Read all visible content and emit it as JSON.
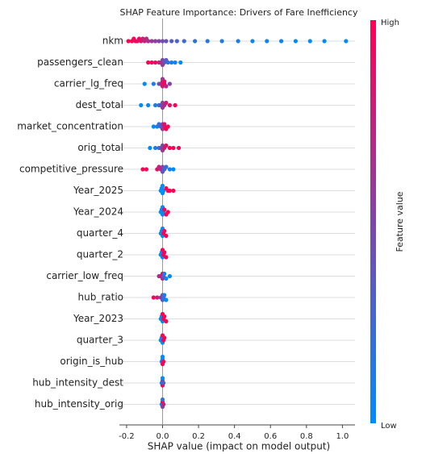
{
  "chart_data": {
    "type": "beeswarm",
    "title": "SHAP Feature Importance: Drivers of Fare Inefficiency",
    "xlabel": "SHAP value (impact on model output)",
    "xlim": [
      -0.24,
      1.07
    ],
    "xticks": [
      -0.2,
      {
        "value": 0,
        "label": "0.0"
      },
      0.2,
      0.4,
      0.6,
      0.8,
      {
        "value": 1,
        "label": "1.0"
      }
    ],
    "colors": {
      "low": "#008bfb",
      "high": "#ff0052"
    },
    "colorbar_label": "Feature value",
    "colorbar_high": "High",
    "colorbar_low": "Low",
    "series": [
      {
        "name": "nkm",
        "values": [
          -0.19,
          -0.17,
          -0.16,
          -0.15,
          -0.14,
          -0.13,
          -0.12,
          -0.11,
          -0.1,
          -0.09,
          -0.08,
          -0.06,
          -0.04,
          -0.02,
          0.0,
          0.02,
          0.05,
          0.08,
          0.12,
          0.18,
          0.25,
          0.33,
          0.42,
          0.5,
          0.58,
          0.66,
          0.74,
          0.82,
          0.9,
          1.02
        ],
        "feature_values": [
          1,
          1,
          1,
          0.95,
          0.9,
          0.9,
          0.85,
          0.8,
          0.75,
          0.7,
          0.65,
          0.6,
          0.55,
          0.5,
          0.45,
          0.4,
          0.35,
          0.3,
          0.25,
          0.2,
          0.15,
          0.1,
          0.1,
          0.05,
          0.05,
          0.05,
          0,
          0,
          0,
          0
        ]
      },
      {
        "name": "passengers_clean",
        "values": [
          -0.08,
          -0.06,
          -0.04,
          -0.02,
          -0.01,
          0.0,
          0.0,
          0.01,
          0.02,
          0.03,
          0.05,
          0.07,
          0.1
        ],
        "feature_values": [
          1,
          0.95,
          0.9,
          0.8,
          0.7,
          0.5,
          0.6,
          0.4,
          0.3,
          0.2,
          0.1,
          0.05,
          0
        ]
      },
      {
        "name": "carrier_lg_freq",
        "values": [
          -0.1,
          -0.05,
          -0.02,
          -0.01,
          0.0,
          0.0,
          0.0,
          0.01,
          0.01,
          0.02,
          0.04
        ],
        "feature_values": [
          0,
          0.1,
          0.3,
          0.7,
          0.9,
          0.8,
          0.6,
          1,
          0.9,
          0.7,
          0.5
        ]
      },
      {
        "name": "dest_total",
        "values": [
          -0.12,
          -0.08,
          -0.04,
          -0.02,
          -0.01,
          0.0,
          0.0,
          0.01,
          0.02,
          0.04,
          0.07
        ],
        "feature_values": [
          0,
          0.05,
          0.1,
          0.2,
          0.4,
          0.5,
          0.6,
          0.7,
          0.8,
          0.9,
          1
        ]
      },
      {
        "name": "market_concentration",
        "values": [
          -0.05,
          -0.03,
          -0.02,
          -0.01,
          0.0,
          0.0,
          0.01,
          0.01,
          0.02,
          0.03
        ],
        "feature_values": [
          0,
          0.1,
          0.2,
          0.3,
          0.5,
          0.6,
          0.8,
          0.9,
          1,
          1
        ]
      },
      {
        "name": "orig_total",
        "values": [
          -0.07,
          -0.04,
          -0.02,
          -0.01,
          0.0,
          0.0,
          0.01,
          0.02,
          0.04,
          0.06,
          0.09
        ],
        "feature_values": [
          0,
          0.1,
          0.2,
          0.4,
          0.5,
          0.6,
          0.8,
          0.9,
          1,
          1,
          1
        ]
      },
      {
        "name": "competitive_pressure",
        "values": [
          -0.11,
          -0.09,
          -0.03,
          -0.02,
          -0.01,
          0.0,
          0.0,
          0.01,
          0.02,
          0.04,
          0.06
        ],
        "feature_values": [
          1,
          0.95,
          0.9,
          0.8,
          0.7,
          0.5,
          0.4,
          0.3,
          0.2,
          0.05,
          0
        ]
      },
      {
        "name": "Year_2025",
        "values": [
          -0.01,
          -0.005,
          0.0,
          0.0,
          0.005,
          0.02,
          0.03,
          0.04,
          0.06
        ],
        "feature_values": [
          0,
          0,
          0,
          0,
          0,
          1,
          1,
          1,
          1
        ]
      },
      {
        "name": "Year_2024",
        "values": [
          -0.01,
          -0.005,
          0.0,
          0.0,
          0.005,
          0.01,
          0.02,
          0.03
        ],
        "feature_values": [
          0,
          0,
          0,
          0,
          0,
          1,
          1,
          1
        ]
      },
      {
        "name": "quarter_4",
        "values": [
          -0.01,
          -0.005,
          0.0,
          0.0,
          0.005,
          0.01,
          0.02
        ],
        "feature_values": [
          0,
          0,
          0,
          0,
          1,
          1,
          1
        ]
      },
      {
        "name": "quarter_2",
        "values": [
          -0.01,
          -0.005,
          0.0,
          0.0,
          0.005,
          0.01,
          0.02
        ],
        "feature_values": [
          0,
          0,
          0,
          1,
          1,
          1,
          1
        ]
      },
      {
        "name": "carrier_low_freq",
        "values": [
          -0.02,
          -0.01,
          0.0,
          0.0,
          0.005,
          0.01,
          0.02,
          0.04
        ],
        "feature_values": [
          0.6,
          0.8,
          1,
          0.7,
          0.3,
          0.1,
          0,
          0
        ]
      },
      {
        "name": "hub_ratio",
        "values": [
          -0.05,
          -0.03,
          -0.01,
          0.0,
          0.0,
          0.005,
          0.01,
          0.02
        ],
        "feature_values": [
          1,
          0.8,
          0.6,
          0.5,
          0.3,
          0.2,
          0.1,
          0
        ]
      },
      {
        "name": "Year_2023",
        "values": [
          -0.01,
          -0.005,
          0.0,
          0.0,
          0.005,
          0.01,
          0.02
        ],
        "feature_values": [
          0,
          0,
          0,
          1,
          1,
          1,
          1
        ]
      },
      {
        "name": "quarter_3",
        "values": [
          -0.01,
          -0.005,
          0.0,
          0.0,
          0.005,
          0.01
        ],
        "feature_values": [
          0,
          0,
          0,
          1,
          1,
          1
        ]
      },
      {
        "name": "origin_is_hub",
        "values": [
          -0.005,
          0.0,
          0.0,
          0.0,
          0.005
        ],
        "feature_values": [
          0,
          0,
          1,
          0,
          1
        ]
      },
      {
        "name": "hub_intensity_dest",
        "values": [
          -0.005,
          0.0,
          0.0,
          0.0,
          0.005
        ],
        "feature_values": [
          0,
          0.5,
          1,
          0,
          0.3
        ]
      },
      {
        "name": "hub_intensity_orig",
        "values": [
          -0.005,
          0.0,
          0.0,
          0.0,
          0.005
        ],
        "feature_values": [
          0,
          1,
          0.5,
          0.2,
          0.8
        ]
      }
    ]
  }
}
